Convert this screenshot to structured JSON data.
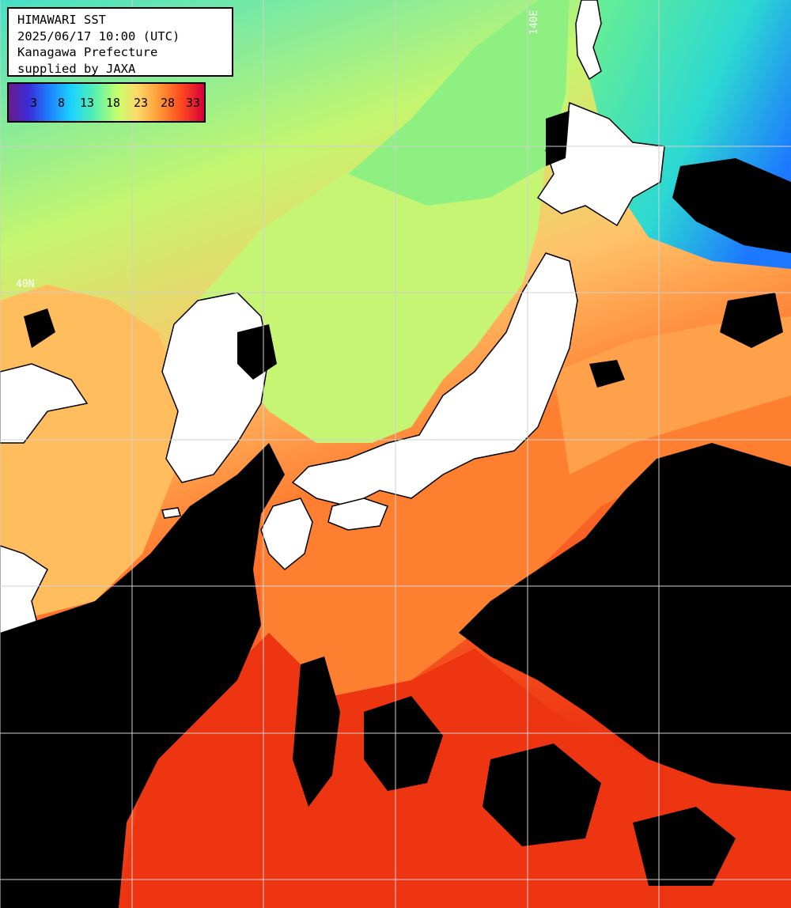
{
  "header": {
    "line1": "HIMAWARI SST",
    "line2": "2025/06/17 10:00 (UTC)",
    "line3": "Kanagawa Prefecture",
    "line4": "supplied by JAXA"
  },
  "legend": {
    "ticks": [
      "3",
      "8",
      "13",
      "18",
      "23",
      "28",
      "33"
    ]
  },
  "grid_labels": {
    "lon_top": "140E",
    "lat_left": "40N"
  },
  "colors": {
    "cloud": "#000000",
    "land": "#ffffff",
    "grid": "#d0d0d0",
    "sst_cold": "#1a8cff",
    "sst_cool": "#4fe6a8",
    "sst_mild": "#b8f56a",
    "sst_warm": "#ffb25a",
    "sst_hot": "#ff5a1a",
    "sst_very_hot": "#ee2a0c"
  }
}
